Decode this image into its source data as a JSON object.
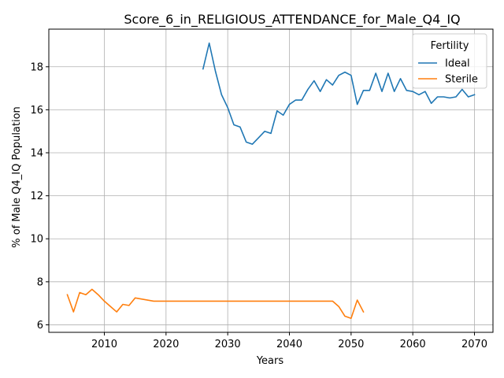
{
  "chart_data": {
    "type": "line",
    "title": "Score_6_in_RELIGIOUS_ATTENDANCE_for_Male_Q4_IQ",
    "xlabel": "Years",
    "ylabel": "% of Male Q4_IQ Population",
    "xlim": [
      2001,
      2073
    ],
    "ylim": [
      5.65,
      19.75
    ],
    "xticks": [
      2010,
      2020,
      2030,
      2040,
      2050,
      2060,
      2070
    ],
    "yticks": [
      6,
      8,
      10,
      12,
      14,
      16,
      18
    ],
    "grid": true,
    "legend": {
      "title": "Fertility",
      "placement": "upper right"
    },
    "series": [
      {
        "name": "Ideal",
        "color": "#1f77b4",
        "x": [
          2026,
          2027,
          2028,
          2029,
          2030,
          2031,
          2032,
          2033,
          2034,
          2035,
          2036,
          2037,
          2038,
          2039,
          2040,
          2041,
          2042,
          2043,
          2044,
          2045,
          2046,
          2047,
          2048,
          2049,
          2050,
          2051,
          2052,
          2053,
          2054,
          2055,
          2056,
          2057,
          2058,
          2059,
          2060,
          2061,
          2062,
          2063,
          2064,
          2065,
          2066,
          2067,
          2068,
          2069,
          2070
        ],
        "y": [
          17.9,
          19.1,
          17.8,
          16.7,
          16.1,
          15.3,
          15.2,
          14.5,
          14.4,
          14.7,
          15.0,
          14.9,
          15.95,
          15.75,
          16.25,
          16.45,
          16.45,
          16.95,
          17.35,
          16.85,
          17.4,
          17.15,
          17.6,
          17.75,
          17.6,
          16.25,
          16.9,
          16.9,
          17.7,
          16.85,
          17.7,
          16.85,
          17.45,
          16.9,
          16.85,
          16.7,
          16.85,
          16.3,
          16.6,
          16.6,
          16.55,
          16.6,
          16.95,
          16.6,
          16.7
        ]
      },
      {
        "name": "Sterile",
        "color": "#ff7f0e",
        "x": [
          2004,
          2005,
          2006,
          2007,
          2008,
          2009,
          2010,
          2011,
          2012,
          2013,
          2014,
          2015,
          2016,
          2017,
          2018,
          2019,
          2020,
          2021,
          2022,
          2023,
          2024,
          2025,
          2026,
          2027,
          2028,
          2029,
          2030,
          2031,
          2032,
          2033,
          2034,
          2035,
          2036,
          2037,
          2038,
          2039,
          2040,
          2041,
          2042,
          2043,
          2044,
          2045,
          2046,
          2047,
          2048,
          2049,
          2050,
          2051,
          2052
        ],
        "y": [
          7.4,
          6.6,
          7.5,
          7.4,
          7.65,
          7.4,
          7.1,
          6.85,
          6.6,
          6.95,
          6.9,
          7.25,
          7.2,
          7.15,
          7.1,
          7.1,
          7.1,
          7.1,
          7.1,
          7.1,
          7.1,
          7.1,
          7.1,
          7.1,
          7.1,
          7.1,
          7.1,
          7.1,
          7.1,
          7.1,
          7.1,
          7.1,
          7.1,
          7.1,
          7.1,
          7.1,
          7.1,
          7.1,
          7.1,
          7.1,
          7.1,
          7.1,
          7.1,
          7.1,
          6.85,
          6.4,
          6.3,
          7.15,
          6.6
        ]
      }
    ]
  }
}
